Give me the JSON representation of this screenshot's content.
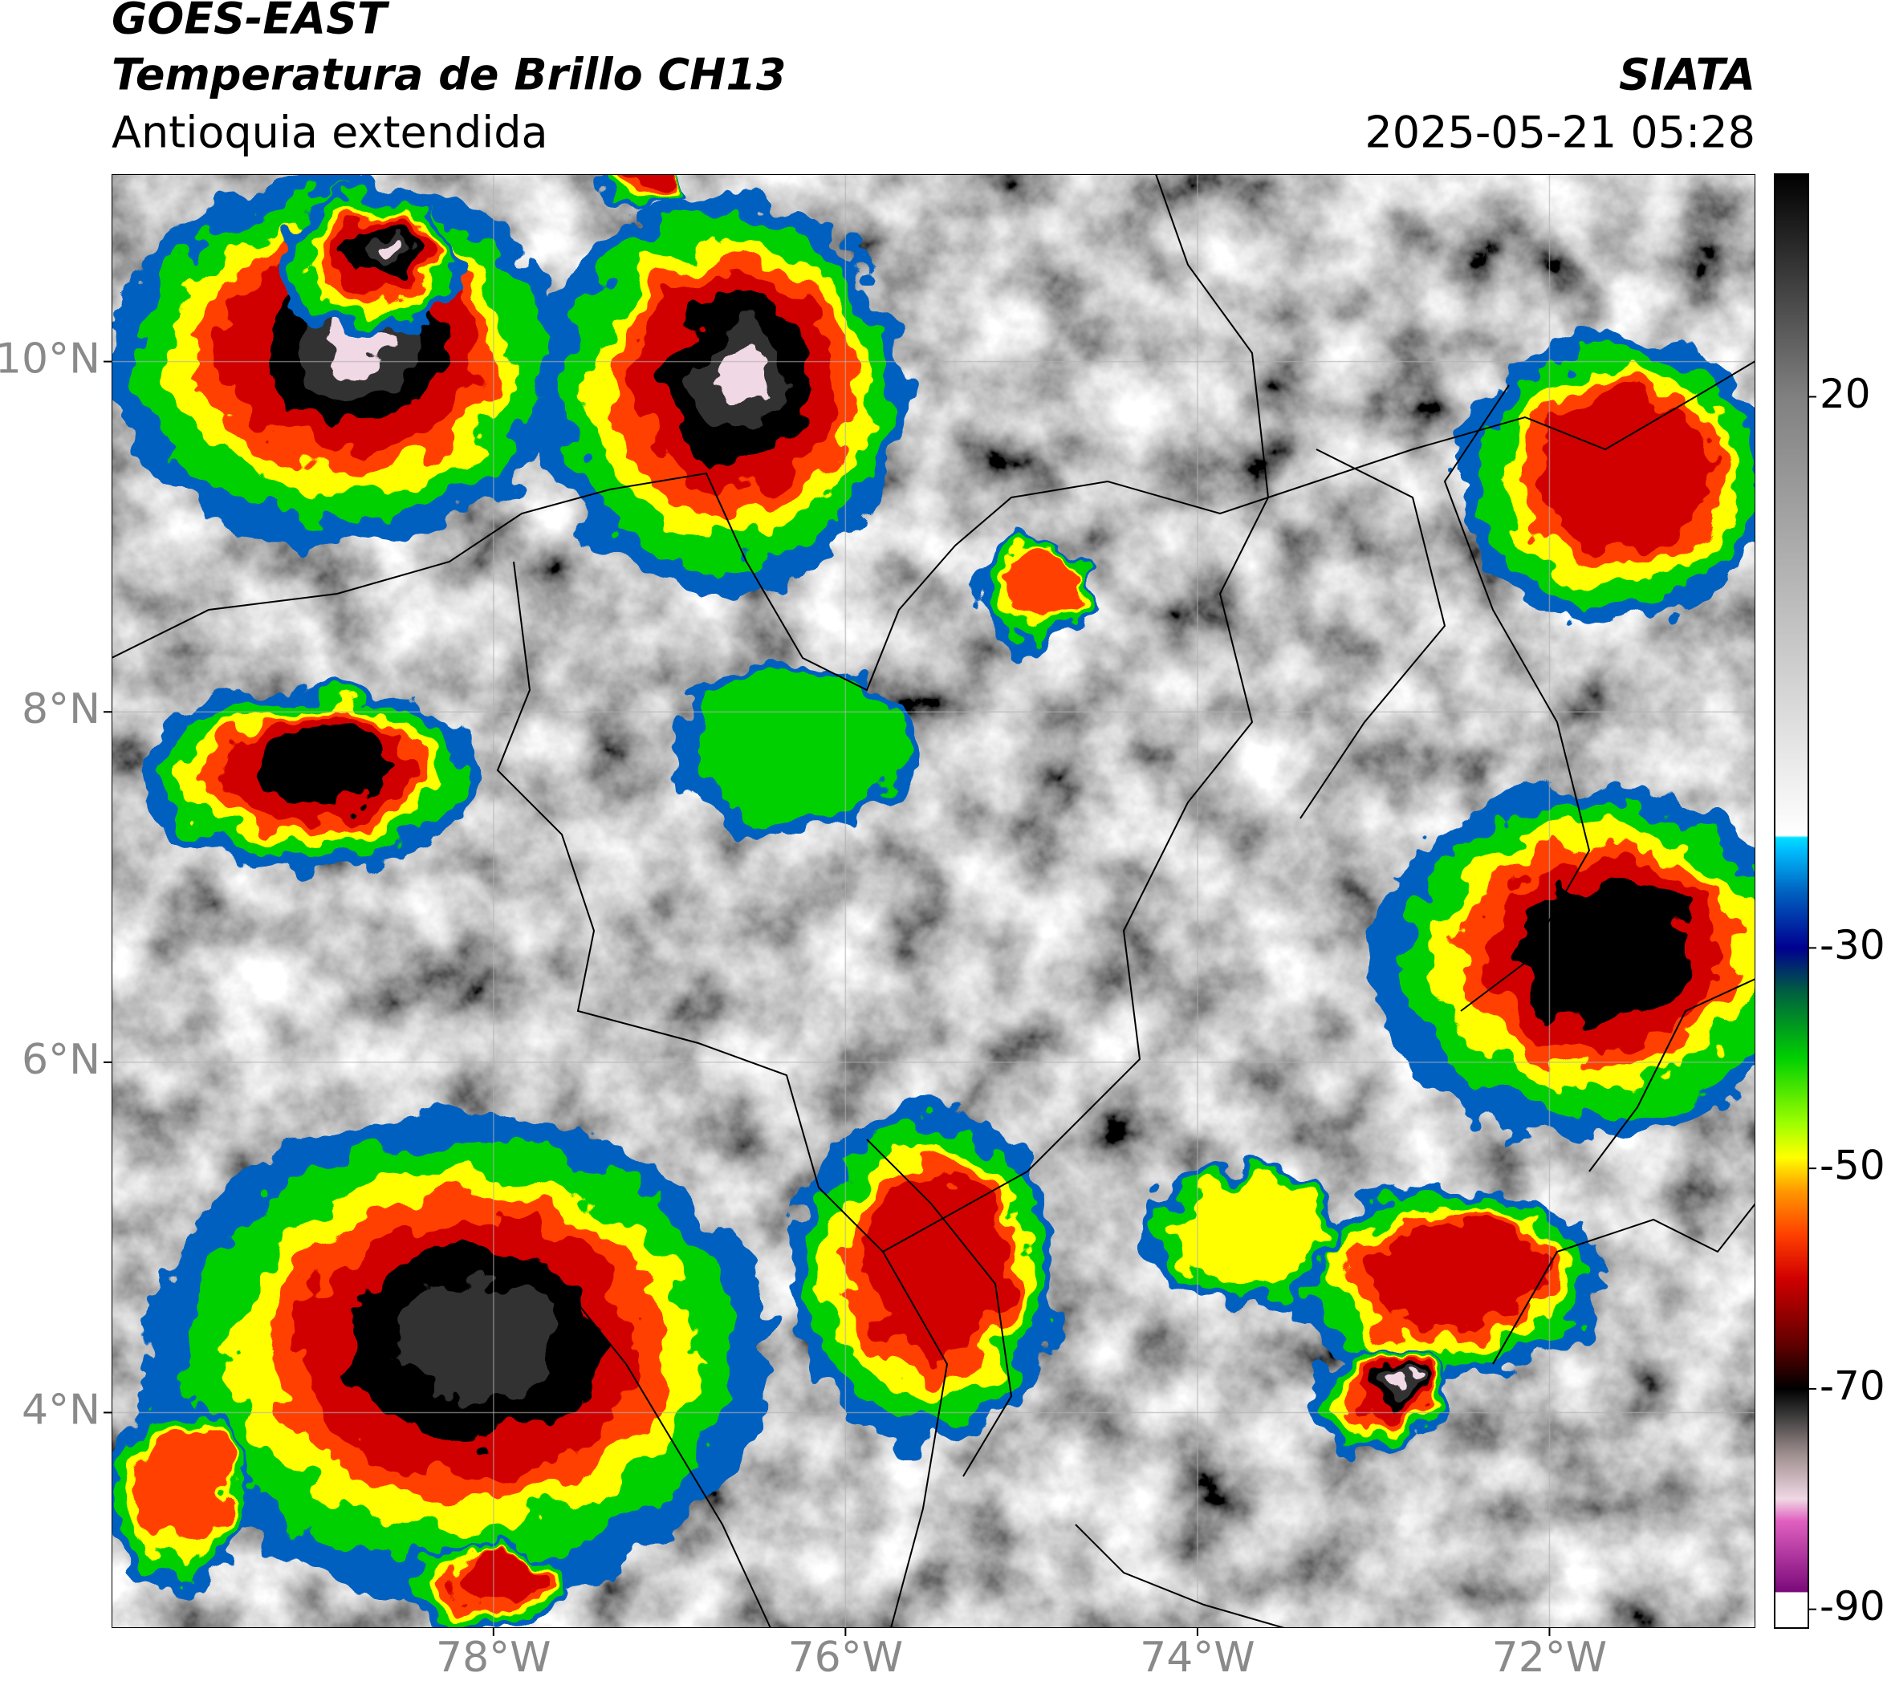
{
  "chart_data": {
    "type": "map",
    "title": "GOES-EAST",
    "subtitle": "Temperatura de Brillo CH13",
    "region": "Antioquia extendida",
    "source": "SIATA",
    "timestamp": "2025-05-21 05:28",
    "xlim": [
      -80.17,
      -70.83
    ],
    "ylim": [
      2.77,
      11.07
    ],
    "xticks": [
      {
        "value": -78,
        "label": "78°W"
      },
      {
        "value": -76,
        "label": "76°W"
      },
      {
        "value": -74,
        "label": "74°W"
      },
      {
        "value": -72,
        "label": "72°W"
      }
    ],
    "yticks": [
      {
        "value": 4,
        "label": "4°N"
      },
      {
        "value": 6,
        "label": "6°N"
      },
      {
        "value": 8,
        "label": "8°N"
      },
      {
        "value": 10,
        "label": "10°N"
      }
    ],
    "grid": true,
    "colorbar_lim": [
      -91.7,
      40.2
    ],
    "colorbar_ticks": [
      20,
      -30,
      -50,
      -70,
      -90
    ],
    "colorscale": [
      [
        -91.7,
        "#ffffff"
      ],
      [
        -88.5,
        "#ffffff"
      ],
      [
        -88.4,
        "#7a0a7a"
      ],
      [
        -82,
        "#e060c0"
      ],
      [
        -80,
        "#f0d8e4"
      ],
      [
        -76,
        "#a09090"
      ],
      [
        -72,
        "#303030"
      ],
      [
        -70,
        "#000000"
      ],
      [
        -66,
        "#600000"
      ],
      [
        -60,
        "#d00000"
      ],
      [
        -56,
        "#ff4000"
      ],
      [
        -52,
        "#ff9900"
      ],
      [
        -49,
        "#ffff00"
      ],
      [
        -46,
        "#a0ff00"
      ],
      [
        -40,
        "#00d000"
      ],
      [
        -34,
        "#006040"
      ],
      [
        -30,
        "#000090"
      ],
      [
        -25,
        "#0060c0"
      ],
      [
        -21,
        "#00c0ff"
      ],
      [
        -20,
        "#00e0ff"
      ],
      [
        -19.8,
        "#ffffff"
      ],
      [
        20,
        "#808080"
      ],
      [
        40.2,
        "#000000"
      ]
    ]
  }
}
